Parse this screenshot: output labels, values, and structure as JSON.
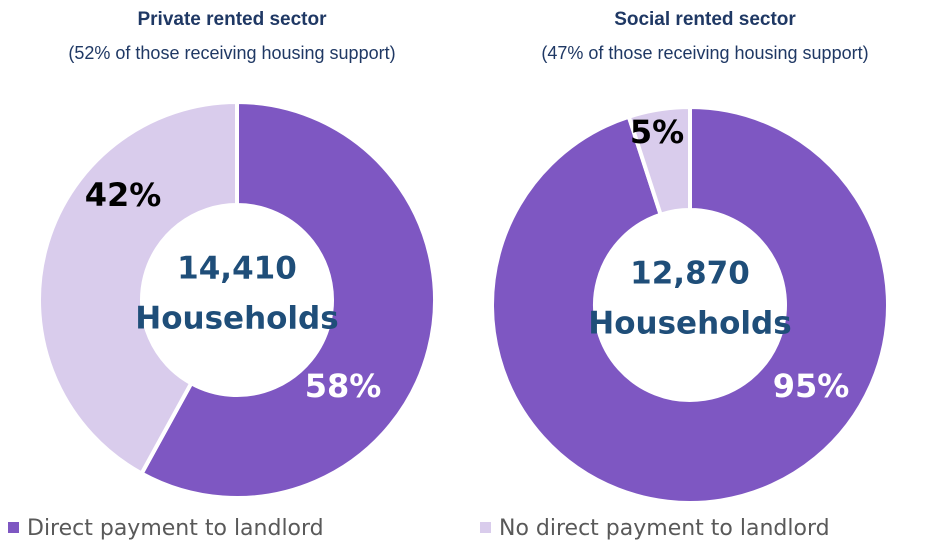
{
  "chart_data": [
    {
      "type": "donut",
      "title": "Private rented sector",
      "subtitle": "(52% of those receiving housing support)",
      "center_text": [
        "14,410",
        "Households"
      ],
      "values": [
        58,
        42
      ],
      "value_labels": [
        "58%",
        "42%"
      ]
    },
    {
      "type": "donut",
      "title": "Social rented sector",
      "subtitle": "(47% of those receiving housing support)",
      "center_text": [
        "12,870",
        "Households"
      ],
      "values": [
        95,
        5
      ],
      "value_labels": [
        "95%",
        "5%"
      ]
    }
  ],
  "legend": {
    "labels": [
      "Direct payment to landlord",
      "No direct payment to landlord"
    ],
    "colors": [
      "#7e57c2",
      "#d9ccec"
    ]
  }
}
